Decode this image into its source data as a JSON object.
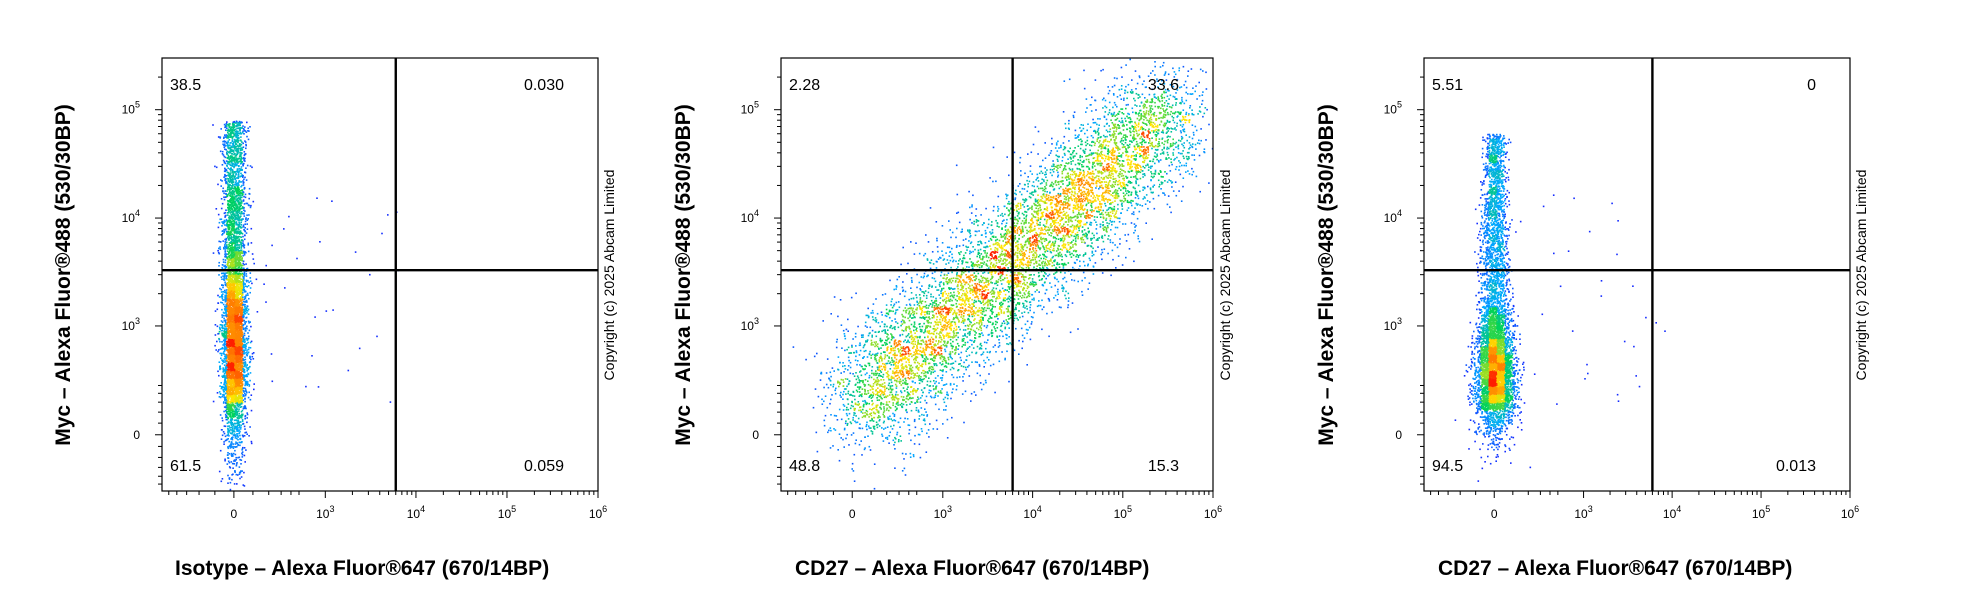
{
  "copyright": "Copyright (c) 2025 Abcam Limited",
  "colors": {
    "low": "#1a1aff",
    "mid": "#00d060",
    "high": "#ffe000",
    "peak": "#ff2000",
    "axis": "#000000"
  },
  "chart_data": [
    {
      "type": "scatter",
      "xlabel": "Isotype – Alexa Fluor®647 (670/14BP)",
      "ylabel": "Myc – Alexa Fluor®488 (530/30BP)",
      "x_scale": "biexponential",
      "y_scale": "biexponential",
      "x_ticks": [
        "0",
        "10^3",
        "10^4",
        "10^5",
        "10^6"
      ],
      "y_ticks": [
        "0",
        "10^3",
        "10^4",
        "10^5"
      ],
      "quadrant_gate": {
        "x": 6000,
        "y": 3300
      },
      "quadrants": {
        "top_left": "38.5",
        "top_right": "0.030",
        "bottom_left": "61.5",
        "bottom_right": "0.059"
      },
      "populations": [
        {
          "x_center": 0,
          "x_spread": 150,
          "y_from": 100,
          "y_to": 80000,
          "y_peak": 700,
          "share": 0.99
        }
      ]
    },
    {
      "type": "scatter",
      "xlabel": "CD27 – Alexa Fluor®647 (670/14BP)",
      "ylabel": "Myc – Alexa Fluor®488 (530/30BP)",
      "x_scale": "biexponential",
      "y_scale": "biexponential",
      "x_ticks": [
        "0",
        "10^3",
        "10^4",
        "10^5",
        "10^6"
      ],
      "y_ticks": [
        "0",
        "10^3",
        "10^4",
        "10^5"
      ],
      "quadrant_gate": {
        "x": 6000,
        "y": 3300
      },
      "quadrants": {
        "top_left": "2.28",
        "top_right": "33.6",
        "bottom_left": "48.8",
        "bottom_right": "15.3"
      },
      "populations": [
        {
          "x_center": 1500,
          "y_center": 700,
          "share": 0.5
        },
        {
          "x_center": 35000,
          "y_center": 12000,
          "share": 0.5
        }
      ]
    },
    {
      "type": "scatter",
      "xlabel": "CD27 – Alexa Fluor®647 (670/14BP)",
      "ylabel": "Myc – Alexa Fluor®488 (530/30BP)",
      "x_scale": "biexponential",
      "y_scale": "biexponential",
      "x_ticks": [
        "0",
        "10^3",
        "10^4",
        "10^5",
        "10^6"
      ],
      "y_ticks": [
        "0",
        "10^3",
        "10^4",
        "10^5"
      ],
      "quadrant_gate": {
        "x": 6000,
        "y": 3300
      },
      "quadrants": {
        "top_left": "5.51",
        "top_right": "0",
        "bottom_left": "94.5",
        "bottom_right": "0.013"
      },
      "populations": [
        {
          "x_center": 0,
          "x_spread": 120,
          "y_from": 80,
          "y_to": 60000,
          "y_peak": 350,
          "share": 0.99
        }
      ]
    }
  ]
}
